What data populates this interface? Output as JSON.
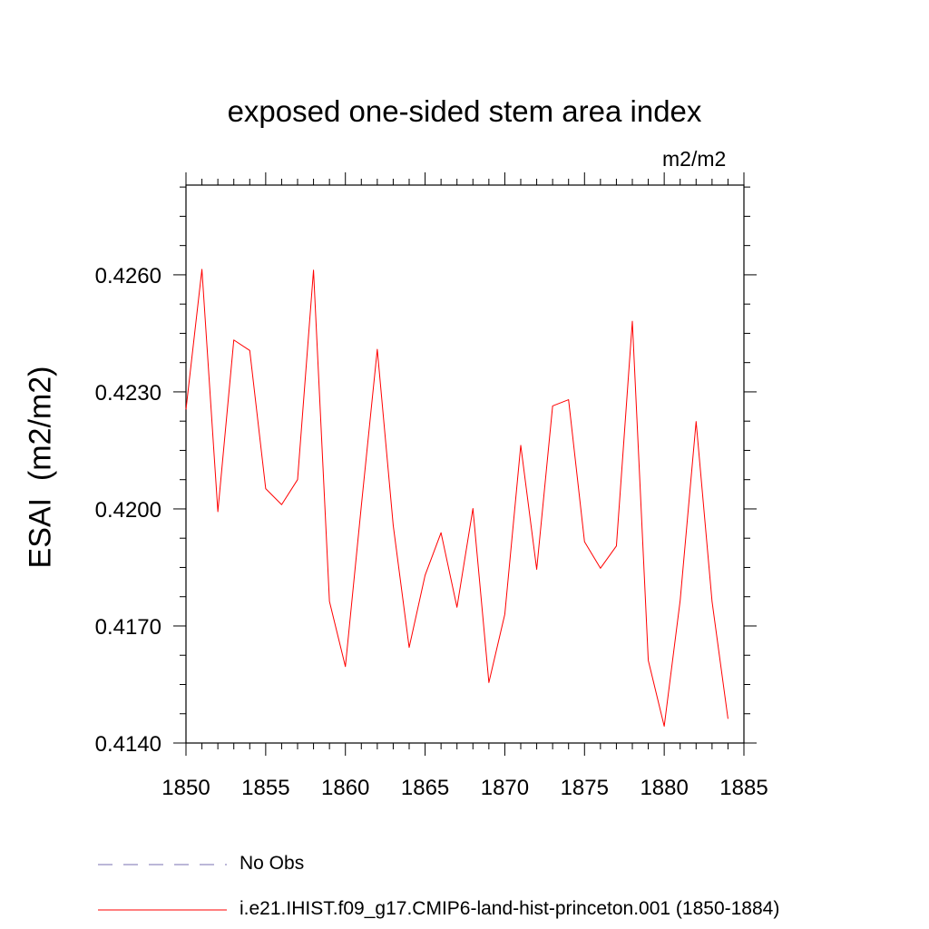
{
  "chart_data": {
    "type": "line",
    "title": "exposed one-sided stem area index",
    "units_label": "m2/m2",
    "ylabel": "ESAI  (m2/m2)",
    "xlabel": "",
    "xlim": [
      1850,
      1885
    ],
    "ylim": [
      0.414,
      0.4283
    ],
    "x_ticks": [
      "1850",
      "1855",
      "1860",
      "1865",
      "1870",
      "1875",
      "1880",
      "1885"
    ],
    "y_ticks": [
      "0.4140",
      "0.4170",
      "0.4200",
      "0.4230",
      "0.4260"
    ],
    "grid": false,
    "legend_position": "bottom",
    "series": [
      {
        "name": "No Obs",
        "color": "#7a6fb0",
        "style": "dashed",
        "x": [],
        "values": []
      },
      {
        "name": "i.e21.IHIST.f09_g17.CMIP6-land-hist-princeton.001 (1850-1884)",
        "color": "#ff0000",
        "style": "solid",
        "x": [
          1850,
          1851,
          1852,
          1853,
          1854,
          1855,
          1856,
          1857,
          1858,
          1859,
          1860,
          1861,
          1862,
          1863,
          1864,
          1865,
          1866,
          1867,
          1868,
          1869,
          1870,
          1871,
          1872,
          1873,
          1874,
          1875,
          1876,
          1877,
          1878,
          1879,
          1880,
          1881,
          1882,
          1883,
          1884
        ],
        "values": [
          0.42255,
          0.42614,
          0.41993,
          0.42433,
          0.42406,
          0.42052,
          0.42011,
          0.42075,
          0.42612,
          0.41763,
          0.41596,
          0.42008,
          0.42409,
          0.41958,
          0.41645,
          0.4183,
          0.41939,
          0.41748,
          0.42001,
          0.41555,
          0.4173,
          0.42163,
          0.41845,
          0.42264,
          0.4228,
          0.41916,
          0.41848,
          0.41905,
          0.42481,
          0.41612,
          0.41443,
          0.41765,
          0.42224,
          0.41763,
          0.41462
        ]
      }
    ]
  }
}
